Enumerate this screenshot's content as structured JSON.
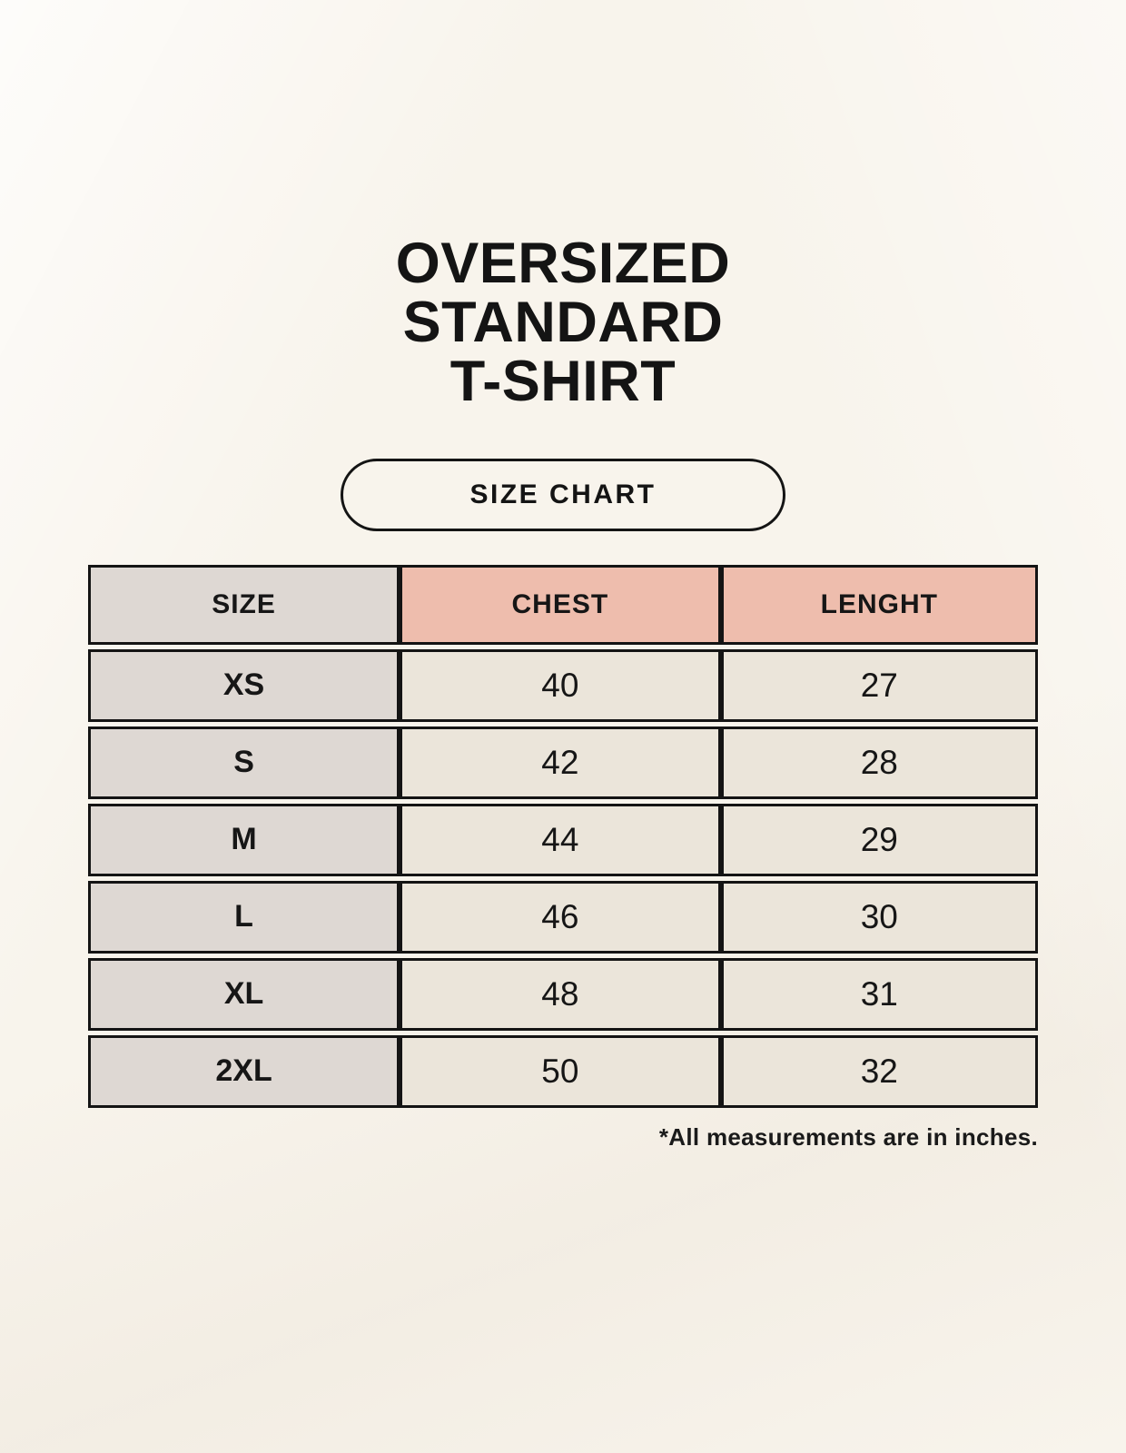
{
  "page": {
    "title_lines": [
      "OVERSIZED",
      "STANDARD",
      "T-SHIRT"
    ],
    "badge_label": "SIZE CHART",
    "footnote": "*All measurements are in inches."
  },
  "chart_data": {
    "type": "table",
    "title": "OVERSIZED STANDARD T-SHIRT",
    "subtitle": "SIZE CHART",
    "columns": [
      "SIZE",
      "CHEST",
      "LENGHT"
    ],
    "rows": [
      [
        "XS",
        "40",
        "27"
      ],
      [
        "S",
        "42",
        "28"
      ],
      [
        "M",
        "44",
        "29"
      ],
      [
        "L",
        "46",
        "30"
      ],
      [
        "XL",
        "48",
        "31"
      ],
      [
        "2XL",
        "50",
        "32"
      ]
    ],
    "units": "inches",
    "footnote": "*All measurements are in inches."
  },
  "colors": {
    "page_background": "#f8f4ec",
    "header_label_bg": "#ded8d3",
    "header_measure_bg": "#eebdad",
    "row_label_bg": "#ded8d3",
    "row_value_bg": "#ebe5da",
    "table_border": "#141414",
    "text": "#161616"
  }
}
